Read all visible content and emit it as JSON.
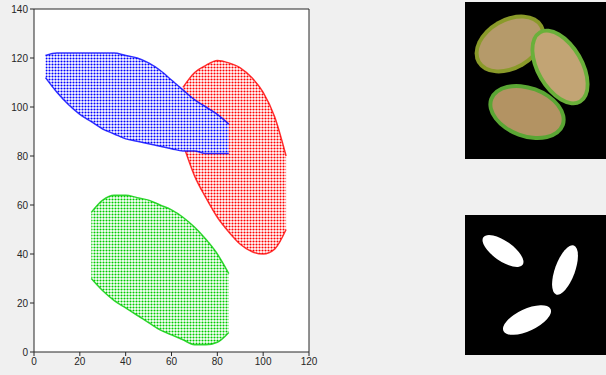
{
  "chart_data": {
    "type": "area",
    "x": [
      0,
      5,
      10,
      15,
      20,
      25,
      30,
      35,
      40,
      45,
      50,
      55,
      60,
      65,
      70,
      75,
      80,
      85,
      90,
      95,
      100,
      105,
      110
    ],
    "series": [
      {
        "color": "#00cc00",
        "values": [
          null,
          null,
          null,
          null,
          null,
          [
            30,
            57
          ],
          [
            25,
            62
          ],
          [
            21,
            64
          ],
          [
            18,
            64
          ],
          [
            15,
            63
          ],
          [
            12,
            62
          ],
          [
            9,
            60
          ],
          [
            7,
            58
          ],
          [
            5,
            55
          ],
          [
            3,
            51
          ],
          [
            3,
            46
          ],
          [
            4,
            40
          ],
          [
            8,
            32
          ],
          null,
          null,
          null,
          null,
          null
        ]
      },
      {
        "color": "#ff0000",
        "values": [
          null,
          null,
          null,
          null,
          null,
          null,
          null,
          null,
          null,
          null,
          null,
          null,
          null,
          [
            85,
            108
          ],
          [
            72,
            114
          ],
          [
            63,
            117
          ],
          [
            55,
            119
          ],
          [
            49,
            118
          ],
          [
            44,
            116
          ],
          [
            41,
            112
          ],
          [
            40,
            106
          ],
          [
            42,
            96
          ],
          [
            50,
            80
          ]
        ]
      },
      {
        "color": "#0000ff",
        "values": [
          null,
          [
            112,
            121
          ],
          [
            106,
            122
          ],
          [
            101,
            122
          ],
          [
            97,
            122
          ],
          [
            94,
            122
          ],
          [
            91,
            122
          ],
          [
            89,
            122
          ],
          [
            87,
            121
          ],
          [
            86,
            120
          ],
          [
            85,
            118
          ],
          [
            84,
            115
          ],
          [
            83,
            111
          ],
          [
            82,
            107
          ],
          [
            82,
            103
          ],
          [
            81,
            100
          ],
          [
            81,
            97
          ],
          [
            81,
            93
          ],
          null,
          null,
          null,
          null,
          null
        ]
      }
    ],
    "xlim": [
      0,
      120
    ],
    "xticks": [
      0,
      20,
      40,
      60,
      80,
      100,
      120
    ],
    "ylim": [
      0,
      140
    ],
    "yticks": [
      0,
      20,
      40,
      60,
      80,
      100,
      120,
      140
    ],
    "grid": false
  }
}
